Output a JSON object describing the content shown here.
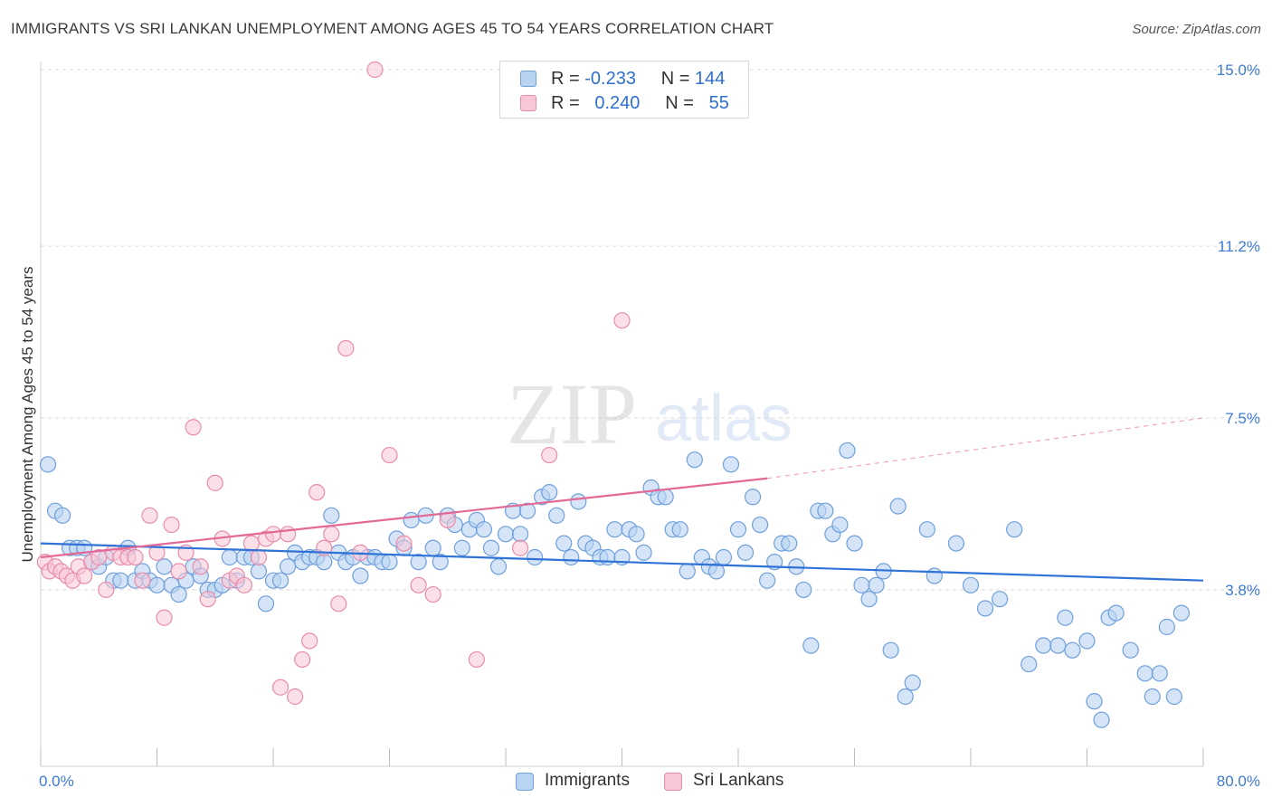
{
  "header": {
    "title": "IMMIGRANTS VS SRI LANKAN UNEMPLOYMENT AMONG AGES 45 TO 54 YEARS CORRELATION CHART",
    "source": "Source: ZipAtlas.com"
  },
  "watermark": {
    "zip": "ZIP",
    "atlas": "atlas"
  },
  "legend_top": [
    {
      "r_label": "R =",
      "r_value": "-0.233",
      "n_label": "N =",
      "n_value": "144"
    },
    {
      "r_label": "R =",
      "r_value": "0.240",
      "n_label": "N =",
      "n_value": "55"
    }
  ],
  "colors": {
    "immigrants_fill": "#b9d3f2",
    "immigrants_edge": "#6f9fdc",
    "immigrants_line": "#2f73d6",
    "srilankans_fill": "#f8c6d6",
    "srilankans_edge": "#e98cab",
    "srilankans_line": "#e36996",
    "axis_text": "#3d7bd3",
    "grid": "#d9d9d9"
  },
  "chart_data": {
    "type": "scatter",
    "title": "IMMIGRANTS VS SRI LANKAN UNEMPLOYMENT AMONG AGES 45 TO 54 YEARS CORRELATION CHART",
    "xlabel": "",
    "ylabel": "Unemployment Among Ages 45 to 54 years",
    "xlim": [
      0,
      80
    ],
    "ylim": [
      0,
      15.0
    ],
    "x_tick_labels": [
      "0.0%",
      "80.0%"
    ],
    "y_ticks": [
      3.8,
      7.5,
      11.2,
      15.0
    ],
    "y_tick_labels": [
      "3.8%",
      "7.5%",
      "11.2%",
      "15.0%"
    ],
    "grid": true,
    "legend_position": "bottom",
    "series": [
      {
        "name": "Immigrants",
        "R": -0.233,
        "N": 144,
        "trend": {
          "x": [
            0,
            80
          ],
          "y": [
            4.8,
            4.0
          ]
        },
        "points": [
          [
            0.5,
            6.5
          ],
          [
            1,
            5.5
          ],
          [
            1.5,
            5.4
          ],
          [
            2,
            4.7
          ],
          [
            2.5,
            4.7
          ],
          [
            3,
            4.7
          ],
          [
            3.5,
            4.4
          ],
          [
            4,
            4.3
          ],
          [
            4.5,
            4.5
          ],
          [
            5,
            4.0
          ],
          [
            5.5,
            4.0
          ],
          [
            6,
            4.7
          ],
          [
            6.5,
            4.0
          ],
          [
            7,
            4.2
          ],
          [
            7.5,
            4.0
          ],
          [
            8,
            3.9
          ],
          [
            8.5,
            4.3
          ],
          [
            9,
            3.9
          ],
          [
            9.5,
            3.7
          ],
          [
            10,
            4.0
          ],
          [
            10.5,
            4.3
          ],
          [
            11,
            4.1
          ],
          [
            11.5,
            3.8
          ],
          [
            12,
            3.8
          ],
          [
            12.5,
            3.9
          ],
          [
            13,
            4.5
          ],
          [
            13.5,
            4.0
          ],
          [
            14,
            4.5
          ],
          [
            14.5,
            4.5
          ],
          [
            15,
            4.2
          ],
          [
            15.5,
            3.5
          ],
          [
            16,
            4.0
          ],
          [
            16.5,
            4.0
          ],
          [
            17,
            4.3
          ],
          [
            17.5,
            4.6
          ],
          [
            18,
            4.4
          ],
          [
            18.5,
            4.5
          ],
          [
            19,
            4.5
          ],
          [
            19.5,
            4.4
          ],
          [
            20,
            5.4
          ],
          [
            20.5,
            4.6
          ],
          [
            21,
            4.4
          ],
          [
            21.5,
            4.5
          ],
          [
            22,
            4.1
          ],
          [
            22.5,
            4.5
          ],
          [
            23,
            4.5
          ],
          [
            23.5,
            4.4
          ],
          [
            24,
            4.4
          ],
          [
            24.5,
            4.9
          ],
          [
            25,
            4.7
          ],
          [
            25.5,
            5.3
          ],
          [
            26,
            4.4
          ],
          [
            26.5,
            5.4
          ],
          [
            27,
            4.7
          ],
          [
            27.5,
            4.4
          ],
          [
            28,
            5.4
          ],
          [
            28.5,
            5.2
          ],
          [
            29,
            4.7
          ],
          [
            29.5,
            5.1
          ],
          [
            30,
            5.3
          ],
          [
            30.5,
            5.1
          ],
          [
            31,
            4.7
          ],
          [
            31.5,
            4.3
          ],
          [
            32,
            5.0
          ],
          [
            32.5,
            5.5
          ],
          [
            33,
            5.0
          ],
          [
            33.5,
            5.5
          ],
          [
            34,
            4.5
          ],
          [
            34.5,
            5.8
          ],
          [
            35,
            5.9
          ],
          [
            35.5,
            5.4
          ],
          [
            36,
            4.8
          ],
          [
            36.5,
            4.5
          ],
          [
            37,
            5.7
          ],
          [
            37.5,
            4.8
          ],
          [
            38,
            4.7
          ],
          [
            38.5,
            4.5
          ],
          [
            39,
            4.5
          ],
          [
            39.5,
            5.1
          ],
          [
            40,
            4.5
          ],
          [
            40.5,
            5.1
          ],
          [
            41,
            5.0
          ],
          [
            41.5,
            4.6
          ],
          [
            42,
            6.0
          ],
          [
            42.5,
            5.8
          ],
          [
            43,
            5.8
          ],
          [
            43.5,
            5.1
          ],
          [
            44,
            5.1
          ],
          [
            44.5,
            4.2
          ],
          [
            45,
            6.6
          ],
          [
            45.5,
            4.5
          ],
          [
            46,
            4.3
          ],
          [
            46.5,
            4.2
          ],
          [
            47,
            4.5
          ],
          [
            47.5,
            6.5
          ],
          [
            48,
            5.1
          ],
          [
            48.5,
            4.6
          ],
          [
            49,
            5.8
          ],
          [
            49.5,
            5.2
          ],
          [
            50,
            4.0
          ],
          [
            50.5,
            4.4
          ],
          [
            51,
            4.8
          ],
          [
            51.5,
            4.8
          ],
          [
            52,
            4.3
          ],
          [
            52.5,
            3.8
          ],
          [
            53,
            2.6
          ],
          [
            53.5,
            5.5
          ],
          [
            54,
            5.5
          ],
          [
            54.5,
            5.0
          ],
          [
            55,
            5.2
          ],
          [
            55.5,
            6.8
          ],
          [
            56,
            4.8
          ],
          [
            56.5,
            3.9
          ],
          [
            57,
            3.6
          ],
          [
            57.5,
            3.9
          ],
          [
            58,
            4.2
          ],
          [
            58.5,
            2.5
          ],
          [
            59,
            5.6
          ],
          [
            59.5,
            1.5
          ],
          [
            60,
            1.8
          ],
          [
            61,
            5.1
          ],
          [
            61.5,
            4.1
          ],
          [
            63,
            4.8
          ],
          [
            64,
            3.9
          ],
          [
            65,
            3.4
          ],
          [
            66,
            3.6
          ],
          [
            67,
            5.1
          ],
          [
            68,
            2.2
          ],
          [
            69,
            2.6
          ],
          [
            70,
            2.6
          ],
          [
            70.5,
            3.2
          ],
          [
            71,
            2.5
          ],
          [
            72,
            2.7
          ],
          [
            72.5,
            1.4
          ],
          [
            73,
            1.0
          ],
          [
            73.5,
            3.2
          ],
          [
            74,
            3.3
          ],
          [
            75,
            2.5
          ],
          [
            76,
            2.0
          ],
          [
            76.5,
            1.5
          ],
          [
            77,
            2.0
          ],
          [
            77.5,
            3.0
          ],
          [
            78,
            1.5
          ],
          [
            78.5,
            3.3
          ]
        ]
      },
      {
        "name": "Sri Lankans",
        "R": 0.24,
        "N": 55,
        "trend_solid": {
          "x": [
            0,
            50
          ],
          "y": [
            4.5,
            6.2
          ]
        },
        "trend_dashed": {
          "x": [
            50,
            80
          ],
          "y": [
            6.2,
            7.5
          ]
        },
        "points": [
          [
            0.3,
            4.4
          ],
          [
            0.6,
            4.2
          ],
          [
            1,
            4.3
          ],
          [
            1.4,
            4.2
          ],
          [
            1.8,
            4.1
          ],
          [
            2.2,
            4.0
          ],
          [
            2.6,
            4.3
          ],
          [
            3,
            4.1
          ],
          [
            3.5,
            4.4
          ],
          [
            4,
            4.5
          ],
          [
            4.5,
            3.8
          ],
          [
            5,
            4.6
          ],
          [
            5.5,
            4.5
          ],
          [
            6,
            4.5
          ],
          [
            6.5,
            4.5
          ],
          [
            7,
            4.0
          ],
          [
            7.5,
            5.4
          ],
          [
            8,
            4.6
          ],
          [
            8.5,
            3.2
          ],
          [
            9,
            5.2
          ],
          [
            9.5,
            4.2
          ],
          [
            10,
            4.6
          ],
          [
            10.5,
            7.3
          ],
          [
            11,
            4.3
          ],
          [
            11.5,
            3.6
          ],
          [
            12,
            6.1
          ],
          [
            12.5,
            4.9
          ],
          [
            13,
            4.0
          ],
          [
            13.5,
            4.1
          ],
          [
            14,
            3.9
          ],
          [
            14.5,
            4.8
          ],
          [
            15,
            4.5
          ],
          [
            15.5,
            4.9
          ],
          [
            16,
            5.0
          ],
          [
            16.5,
            1.7
          ],
          [
            17,
            5.0
          ],
          [
            17.5,
            1.5
          ],
          [
            18,
            2.3
          ],
          [
            18.5,
            2.7
          ],
          [
            19,
            5.9
          ],
          [
            19.5,
            4.7
          ],
          [
            20,
            5.0
          ],
          [
            20.5,
            3.5
          ],
          [
            21,
            9.0
          ],
          [
            22,
            4.6
          ],
          [
            23,
            15.0
          ],
          [
            24,
            6.7
          ],
          [
            25,
            4.8
          ],
          [
            26,
            3.9
          ],
          [
            27,
            3.7
          ],
          [
            28,
            5.3
          ],
          [
            30,
            2.3
          ],
          [
            33,
            4.7
          ],
          [
            35,
            6.7
          ],
          [
            40,
            9.6
          ]
        ]
      }
    ]
  }
}
